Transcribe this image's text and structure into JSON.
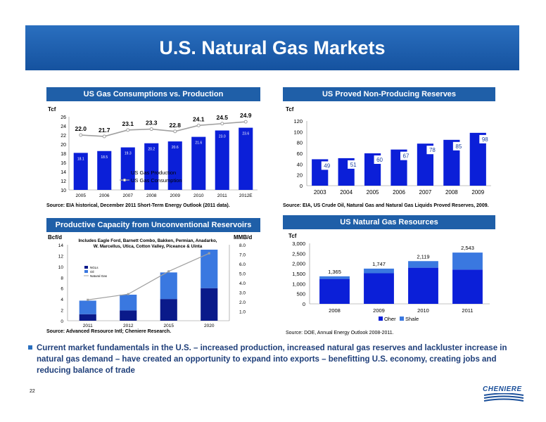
{
  "slide": {
    "title": "U.S. Natural Gas Markets",
    "page_number": "22",
    "logo_text": "CHENIERE",
    "bullet": "Current market fundamentals in the U.S. – increased production, increased natural gas reserves and lackluster increase in natural gas demand – have created an opportunity to expand into exports – benefitting U.S. economy, creating jobs and reducing balance of trade",
    "colors": {
      "title_bar": "#1f5fa8",
      "bar": "#0b1fd8",
      "dark_bar": "#0a1a8a",
      "light_bar": "#3a78e0",
      "line": "#a0a0a0"
    }
  },
  "chart_data": [
    {
      "type": "bar",
      "title": "US Gas Consumptions vs. Production",
      "ylabel": "Tcf",
      "ylim": [
        10,
        26
      ],
      "yticks": [
        "10",
        "12",
        "14",
        "16",
        "18",
        "20",
        "22",
        "24",
        "26"
      ],
      "categories": [
        "2005",
        "2006",
        "2007",
        "2008",
        "2009",
        "2010",
        "2011",
        "2012E"
      ],
      "series": [
        {
          "name": "US Gas Production",
          "type": "bar",
          "values": [
            18.1,
            18.5,
            19.3,
            20.2,
            20.6,
            21.6,
            23.0,
            23.6
          ],
          "labels": [
            "18.1",
            "18.5",
            "19.3",
            "20.2",
            "20.6",
            "21.6",
            "23.0",
            "23.6"
          ]
        },
        {
          "name": "US Gas Consumption",
          "type": "line",
          "values": [
            22.0,
            21.7,
            23.1,
            23.3,
            22.8,
            24.1,
            24.5,
            24.9
          ],
          "labels": [
            "22.0",
            "21.7",
            "23.1",
            "23.3",
            "22.8",
            "24.1",
            "24.5",
            "24.9"
          ]
        }
      ],
      "legend": "bottom-center",
      "source": "Source: EIA historical, December 2011 Short-Term Energy Outlook (2011 data)."
    },
    {
      "type": "bar",
      "title": "US Proved Non-Producing Reserves",
      "ylabel": "Tcf",
      "ylim": [
        0,
        120
      ],
      "yticks": [
        "0",
        "20",
        "40",
        "60",
        "80",
        "100",
        "120"
      ],
      "categories": [
        "2003",
        "2004",
        "2005",
        "2006",
        "2007",
        "2008",
        "2009"
      ],
      "values": [
        49,
        51,
        60,
        67,
        78,
        85,
        98
      ],
      "labels": [
        "49",
        "51",
        "60",
        "67",
        "78",
        "85",
        "98"
      ],
      "source": "Source: EIA, US Crude Oil, Natural Gas and Natural Gas Liquids Proved Reserves, 2009."
    },
    {
      "type": "bar",
      "title": "Productive Capacity from Unconventional Reservoirs",
      "ylabel": "Bcf/d",
      "y2label": "MMB/d",
      "ylim": [
        0,
        14
      ],
      "y2lim": [
        0,
        8
      ],
      "yticks": [
        "0",
        "2",
        "4",
        "6",
        "8",
        "10",
        "12",
        "14"
      ],
      "y2ticks": [
        "1.0",
        "2.0",
        "3.0",
        "4.0",
        "5.0",
        "6.0",
        "7.0",
        "8.0"
      ],
      "annotation": "Includes Eagle Ford, Barnett Combo, Bakken, Permian, Anadarko, W. Marcellus, Utica, Cotton Valley, Piceance & Uinta",
      "categories": [
        "2011",
        "2012",
        "2015",
        "2020"
      ],
      "series": [
        {
          "name": "NGLs",
          "type": "stacked-bar",
          "values": [
            1.2,
            1.9,
            4.0,
            6.0
          ]
        },
        {
          "name": "Oil",
          "type": "stacked-bar",
          "values": [
            2.5,
            2.9,
            4.9,
            7.1
          ]
        },
        {
          "name": "Natural Gas",
          "type": "line",
          "axis": "y2",
          "values": [
            2.2,
            2.8,
            5.2,
            7.1
          ]
        }
      ],
      "legend": "left",
      "source": "Source: Advanced Resource Intl; Cheniere Research."
    },
    {
      "type": "bar",
      "title": "US Natural Gas Resources",
      "ylabel": "Tcf",
      "ylim": [
        0,
        3000
      ],
      "yticks": [
        "0",
        "500",
        "1,000",
        "1,500",
        "2,000",
        "2,500",
        "3,000"
      ],
      "categories": [
        "2008",
        "2009",
        "2010",
        "2011"
      ],
      "series": [
        {
          "name": "Oher",
          "type": "stacked-bar",
          "values": [
            1235,
            1517,
            1792,
            1700
          ]
        },
        {
          "name": "Shale",
          "type": "stacked-bar",
          "values": [
            130,
            230,
            327,
            843
          ]
        }
      ],
      "totals": [
        "1,365",
        "1,747",
        "2,119",
        "2,543"
      ],
      "legend": "bottom-center",
      "source": "Source: DOE, Annual Energy Outlook 2008-2011."
    }
  ]
}
